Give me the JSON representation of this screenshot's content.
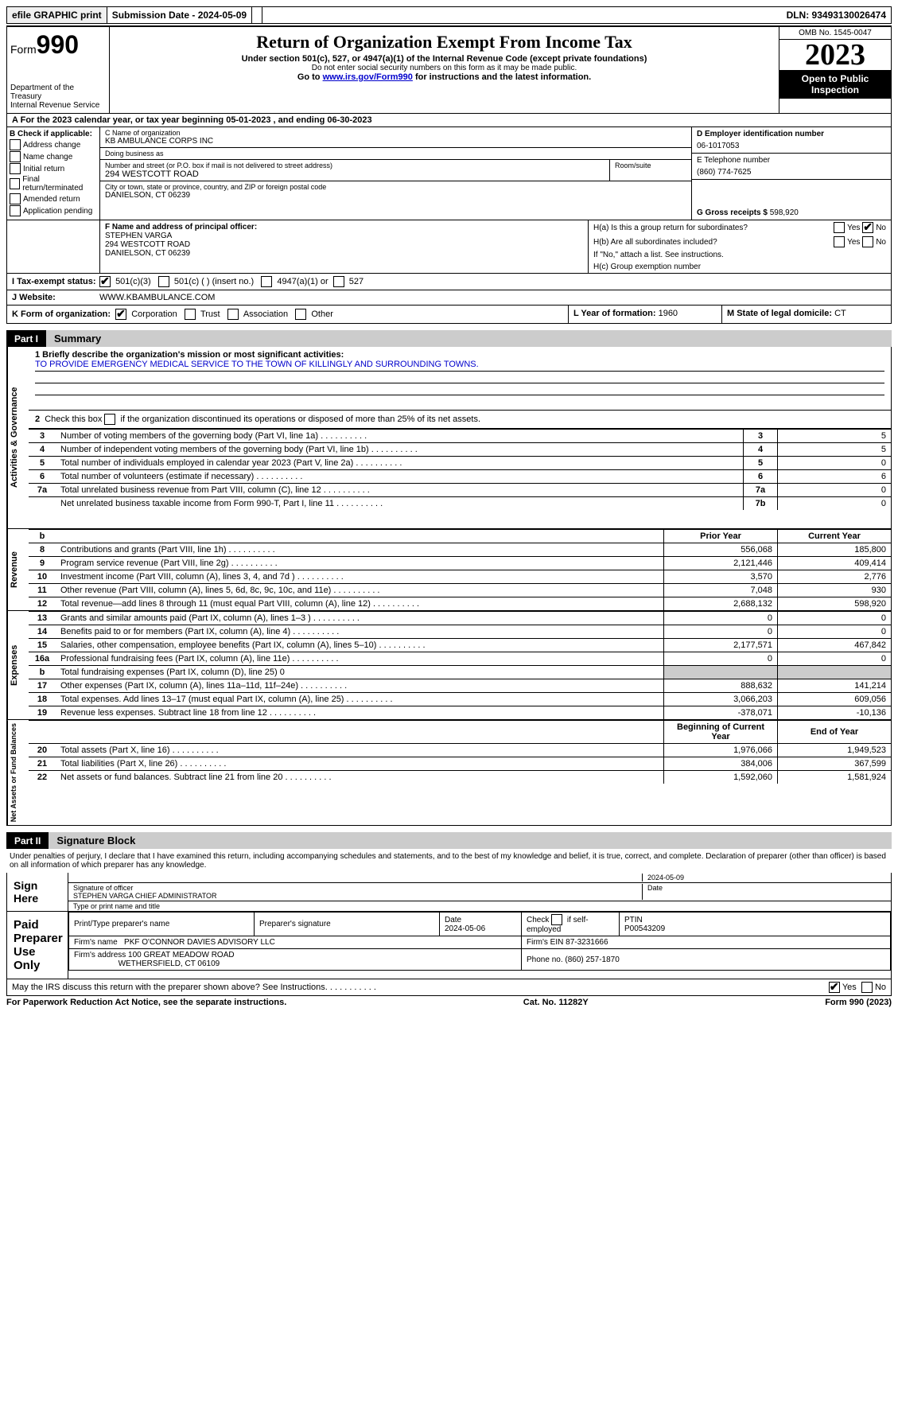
{
  "top_bar": {
    "efile": "efile GRAPHIC print",
    "submission": "Submission Date - 2024-05-09",
    "dln": "DLN: 93493130026474"
  },
  "header": {
    "form_prefix": "Form",
    "form_num": "990",
    "dept": "Department of the Treasury\nInternal Revenue Service",
    "title": "Return of Organization Exempt From Income Tax",
    "subtitle": "Under section 501(c), 527, or 4947(a)(1) of the Internal Revenue Code (except private foundations)",
    "warning": "Do not enter social security numbers on this form as it may be made public.",
    "goto_prefix": "Go to ",
    "goto_link": "www.irs.gov/Form990",
    "goto_suffix": " for instructions and the latest information.",
    "omb": "OMB No. 1545-0047",
    "year": "2023",
    "inspection": "Open to Public Inspection"
  },
  "line_a": "For the 2023 calendar year, or tax year beginning 05-01-2023   , and ending 06-30-2023",
  "block_b": {
    "label": "B Check if applicable:",
    "items": [
      "Address change",
      "Name change",
      "Initial return",
      "Final return/terminated",
      "Amended return",
      "Application pending"
    ]
  },
  "block_c": {
    "name_label": "C Name of organization",
    "name": "KB AMBULANCE CORPS INC",
    "dba_label": "Doing business as",
    "dba": "",
    "street_label": "Number and street (or P.O. box if mail is not delivered to street address)",
    "street": "294 WESTCOTT ROAD",
    "room_label": "Room/suite",
    "city_label": "City or town, state or province, country, and ZIP or foreign postal code",
    "city": "DANIELSON, CT  06239"
  },
  "block_d": {
    "ein_label": "D Employer identification number",
    "ein": "06-1017053",
    "phone_label": "E Telephone number",
    "phone": "(860) 774-7625",
    "gross_label": "G Gross receipts $",
    "gross": "598,920"
  },
  "block_f": {
    "label": "F  Name and address of principal officer:",
    "name": "STEPHEN VARGA",
    "street": "294 WESTCOTT ROAD",
    "city": "DANIELSON, CT  06239"
  },
  "block_h": {
    "ha": "H(a)  Is this a group return for subordinates?",
    "hb": "H(b)  Are all subordinates included?",
    "hb_note": "If \"No,\" attach a list. See instructions.",
    "hc": "H(c)  Group exemption number"
  },
  "tax_exempt": {
    "label": "I   Tax-exempt status:",
    "opt1": "501(c)(3)",
    "opt2": "501(c) (  ) (insert no.)",
    "opt3": "4947(a)(1) or",
    "opt4": "527"
  },
  "website": {
    "label": "J   Website:",
    "value": "WWW.KBAMBULANCE.COM"
  },
  "line_k": {
    "label": "K Form of organization:",
    "opts": [
      "Corporation",
      "Trust",
      "Association",
      "Other"
    ],
    "l_label": "L Year of formation:",
    "l_value": "1960",
    "m_label": "M State of legal domicile:",
    "m_value": "CT"
  },
  "part1": {
    "tab": "Part I",
    "title": "Summary"
  },
  "mission": {
    "label": "1   Briefly describe the organization's mission or most significant activities:",
    "text": "TO PROVIDE EMERGENCY MEDICAL SERVICE TO THE TOWN OF KILLINGLY AND SURROUNDING TOWNS."
  },
  "line2": "2    Check this box        if the organization discontinued its operations or disposed of more than 25% of its net assets.",
  "gov_rows": [
    {
      "n": "3",
      "t": "Number of voting members of the governing body (Part VI, line 1a)",
      "box": "3",
      "v": "5"
    },
    {
      "n": "4",
      "t": "Number of independent voting members of the governing body (Part VI, line 1b)",
      "box": "4",
      "v": "5"
    },
    {
      "n": "5",
      "t": "Total number of individuals employed in calendar year 2023 (Part V, line 2a)",
      "box": "5",
      "v": "0"
    },
    {
      "n": "6",
      "t": "Total number of volunteers (estimate if necessary)",
      "box": "6",
      "v": "6"
    },
    {
      "n": "7a",
      "t": "Total unrelated business revenue from Part VIII, column (C), line 12",
      "box": "7a",
      "v": "0"
    },
    {
      "n": "",
      "t": "Net unrelated business taxable income from Form 990-T, Part I, line 11",
      "box": "7b",
      "v": "0"
    }
  ],
  "rev_header": {
    "prior": "Prior Year",
    "current": "Current Year"
  },
  "rev_rows": [
    {
      "n": "8",
      "t": "Contributions and grants (Part VIII, line 1h)",
      "p": "556,068",
      "c": "185,800"
    },
    {
      "n": "9",
      "t": "Program service revenue (Part VIII, line 2g)",
      "p": "2,121,446",
      "c": "409,414"
    },
    {
      "n": "10",
      "t": "Investment income (Part VIII, column (A), lines 3, 4, and 7d )",
      "p": "3,570",
      "c": "2,776"
    },
    {
      "n": "11",
      "t": "Other revenue (Part VIII, column (A), lines 5, 6d, 8c, 9c, 10c, and 11e)",
      "p": "7,048",
      "c": "930"
    },
    {
      "n": "12",
      "t": "Total revenue—add lines 8 through 11 (must equal Part VIII, column (A), line 12)",
      "p": "2,688,132",
      "c": "598,920"
    }
  ],
  "exp_rows": [
    {
      "n": "13",
      "t": "Grants and similar amounts paid (Part IX, column (A), lines 1–3 )",
      "p": "0",
      "c": "0"
    },
    {
      "n": "14",
      "t": "Benefits paid to or for members (Part IX, column (A), line 4)",
      "p": "0",
      "c": "0"
    },
    {
      "n": "15",
      "t": "Salaries, other compensation, employee benefits (Part IX, column (A), lines 5–10)",
      "p": "2,177,571",
      "c": "467,842"
    },
    {
      "n": "16a",
      "t": "Professional fundraising fees (Part IX, column (A), line 11e)",
      "p": "0",
      "c": "0"
    },
    {
      "n": "b",
      "t": "Total fundraising expenses (Part IX, column (D), line 25) 0",
      "p": "gray",
      "c": "gray"
    },
    {
      "n": "17",
      "t": "Other expenses (Part IX, column (A), lines 11a–11d, 11f–24e)",
      "p": "888,632",
      "c": "141,214"
    },
    {
      "n": "18",
      "t": "Total expenses. Add lines 13–17 (must equal Part IX, column (A), line 25)",
      "p": "3,066,203",
      "c": "609,056"
    },
    {
      "n": "19",
      "t": "Revenue less expenses. Subtract line 18 from line 12",
      "p": "-378,071",
      "c": "-10,136"
    }
  ],
  "na_header": {
    "begin": "Beginning of Current Year",
    "end": "End of Year"
  },
  "na_rows": [
    {
      "n": "20",
      "t": "Total assets (Part X, line 16)",
      "p": "1,976,066",
      "c": "1,949,523"
    },
    {
      "n": "21",
      "t": "Total liabilities (Part X, line 26)",
      "p": "384,006",
      "c": "367,599"
    },
    {
      "n": "22",
      "t": "Net assets or fund balances. Subtract line 21 from line 20",
      "p": "1,592,060",
      "c": "1,581,924"
    }
  ],
  "sidebar": {
    "gov": "Activities & Governance",
    "rev": "Revenue",
    "exp": "Expenses",
    "na": "Net Assets or Fund Balances"
  },
  "part2": {
    "tab": "Part II",
    "title": "Signature Block"
  },
  "sig_declaration": "Under penalties of perjury, I declare that I have examined this return, including accompanying schedules and statements, and to the best of my knowledge and belief, it is true, correct, and complete. Declaration of preparer (other than officer) is based on all information of which preparer has any knowledge.",
  "sign": {
    "here": "Sign Here",
    "date": "2024-05-09",
    "officer": "STEPHEN VARGA  CHIEF ADMINISTRATOR",
    "sig_label": "Signature of officer",
    "date_label": "Date",
    "type_label": "Type or print name and title"
  },
  "paid": {
    "label": "Paid Preparer Use Only",
    "h1": "Print/Type preparer's name",
    "h2": "Preparer's signature",
    "h3": "Date",
    "h3v": "2024-05-06",
    "h4": "Check        if self-employed",
    "h5": "PTIN",
    "h5v": "P00543209",
    "firm_label": "Firm's name",
    "firm": "PKF O'CONNOR DAVIES ADVISORY LLC",
    "ein_label": "Firm's EIN",
    "ein": "87-3231666",
    "addr_label": "Firm's address",
    "addr1": "100 GREAT MEADOW ROAD",
    "addr2": "WETHERSFIELD, CT  06109",
    "phone_label": "Phone no.",
    "phone": "(860) 257-1870"
  },
  "discuss": "May the IRS discuss this return with the preparer shown above? See Instructions.",
  "footer": {
    "left": "For Paperwork Reduction Act Notice, see the separate instructions.",
    "mid": "Cat. No. 11282Y",
    "right_prefix": "Form ",
    "right_num": "990",
    "right_suffix": " (2023)"
  },
  "yes": "Yes",
  "no": "No"
}
